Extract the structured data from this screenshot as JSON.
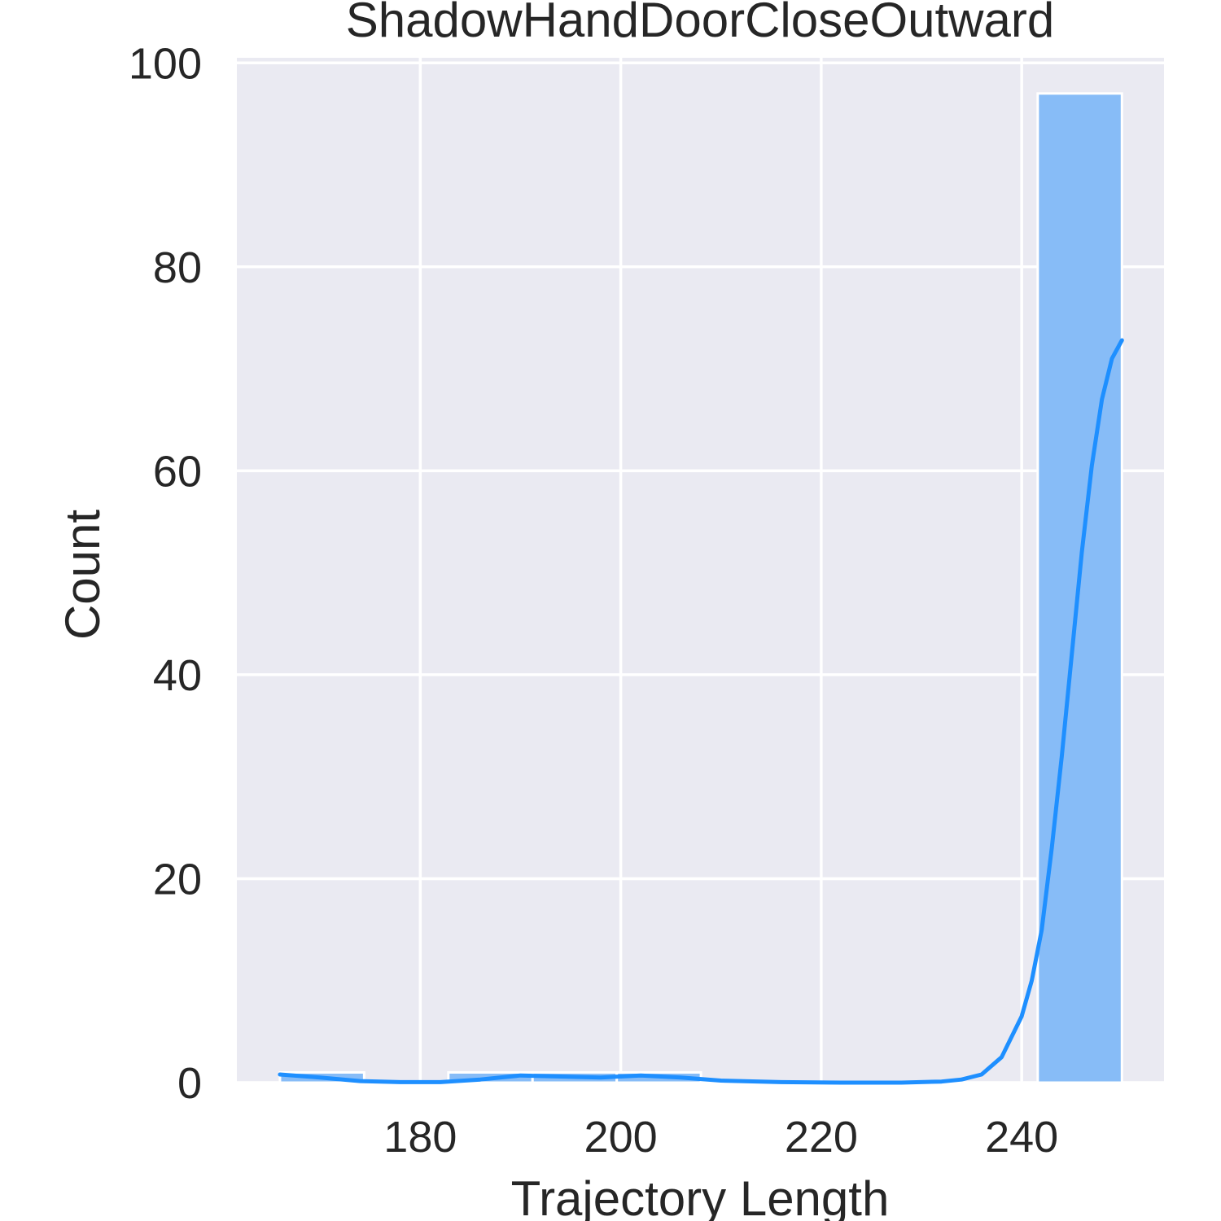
{
  "chart_data": {
    "type": "bar",
    "title": "ShadowHandDoorCloseOutward",
    "xlabel": "Trajectory Length",
    "ylabel": "Count",
    "xlim": [
      161.7,
      254.2
    ],
    "ylim": [
      0,
      100.5
    ],
    "xticks": [
      "180",
      "200",
      "220",
      "240"
    ],
    "yticks": [
      "0",
      "20",
      "40",
      "60",
      "80",
      "100"
    ],
    "grid": true,
    "bins": [
      {
        "x0": 166.0,
        "x1": 174.4,
        "count": 1
      },
      {
        "x0": 174.4,
        "x1": 182.8,
        "count": 0
      },
      {
        "x0": 182.8,
        "x1": 191.2,
        "count": 1
      },
      {
        "x0": 191.2,
        "x1": 199.6,
        "count": 1
      },
      {
        "x0": 199.6,
        "x1": 208.0,
        "count": 1
      },
      {
        "x0": 208.0,
        "x1": 216.4,
        "count": 0
      },
      {
        "x0": 216.4,
        "x1": 224.8,
        "count": 0
      },
      {
        "x0": 224.8,
        "x1": 233.2,
        "count": 0
      },
      {
        "x0": 233.2,
        "x1": 241.6,
        "count": 0
      },
      {
        "x0": 241.6,
        "x1": 250.0,
        "count": 97
      }
    ],
    "kde": [
      [
        166,
        0.8
      ],
      [
        170,
        0.5
      ],
      [
        174,
        0.15
      ],
      [
        178,
        0.05
      ],
      [
        182,
        0.05
      ],
      [
        186,
        0.3
      ],
      [
        190,
        0.7
      ],
      [
        194,
        0.6
      ],
      [
        198,
        0.5
      ],
      [
        202,
        0.7
      ],
      [
        206,
        0.5
      ],
      [
        210,
        0.2
      ],
      [
        216,
        0.05
      ],
      [
        222,
        0.0
      ],
      [
        228,
        0.0
      ],
      [
        232,
        0.1
      ],
      [
        234,
        0.3
      ],
      [
        236,
        0.8
      ],
      [
        238,
        2.5
      ],
      [
        240,
        6.5
      ],
      [
        241,
        10.0
      ],
      [
        242,
        15.0
      ],
      [
        243,
        23.0
      ],
      [
        244,
        32.0
      ],
      [
        245,
        42.0
      ],
      [
        246,
        52.0
      ],
      [
        247,
        60.5
      ],
      [
        248,
        67.0
      ],
      [
        249,
        71.0
      ],
      [
        250,
        72.8
      ]
    ],
    "colors": {
      "bar_fill": "#87bcf7",
      "bar_edge": "#ffffff",
      "kde_line": "#1e8fff",
      "plot_bg": "#eaeaf2",
      "grid": "#ffffff",
      "text": "#262626"
    }
  }
}
